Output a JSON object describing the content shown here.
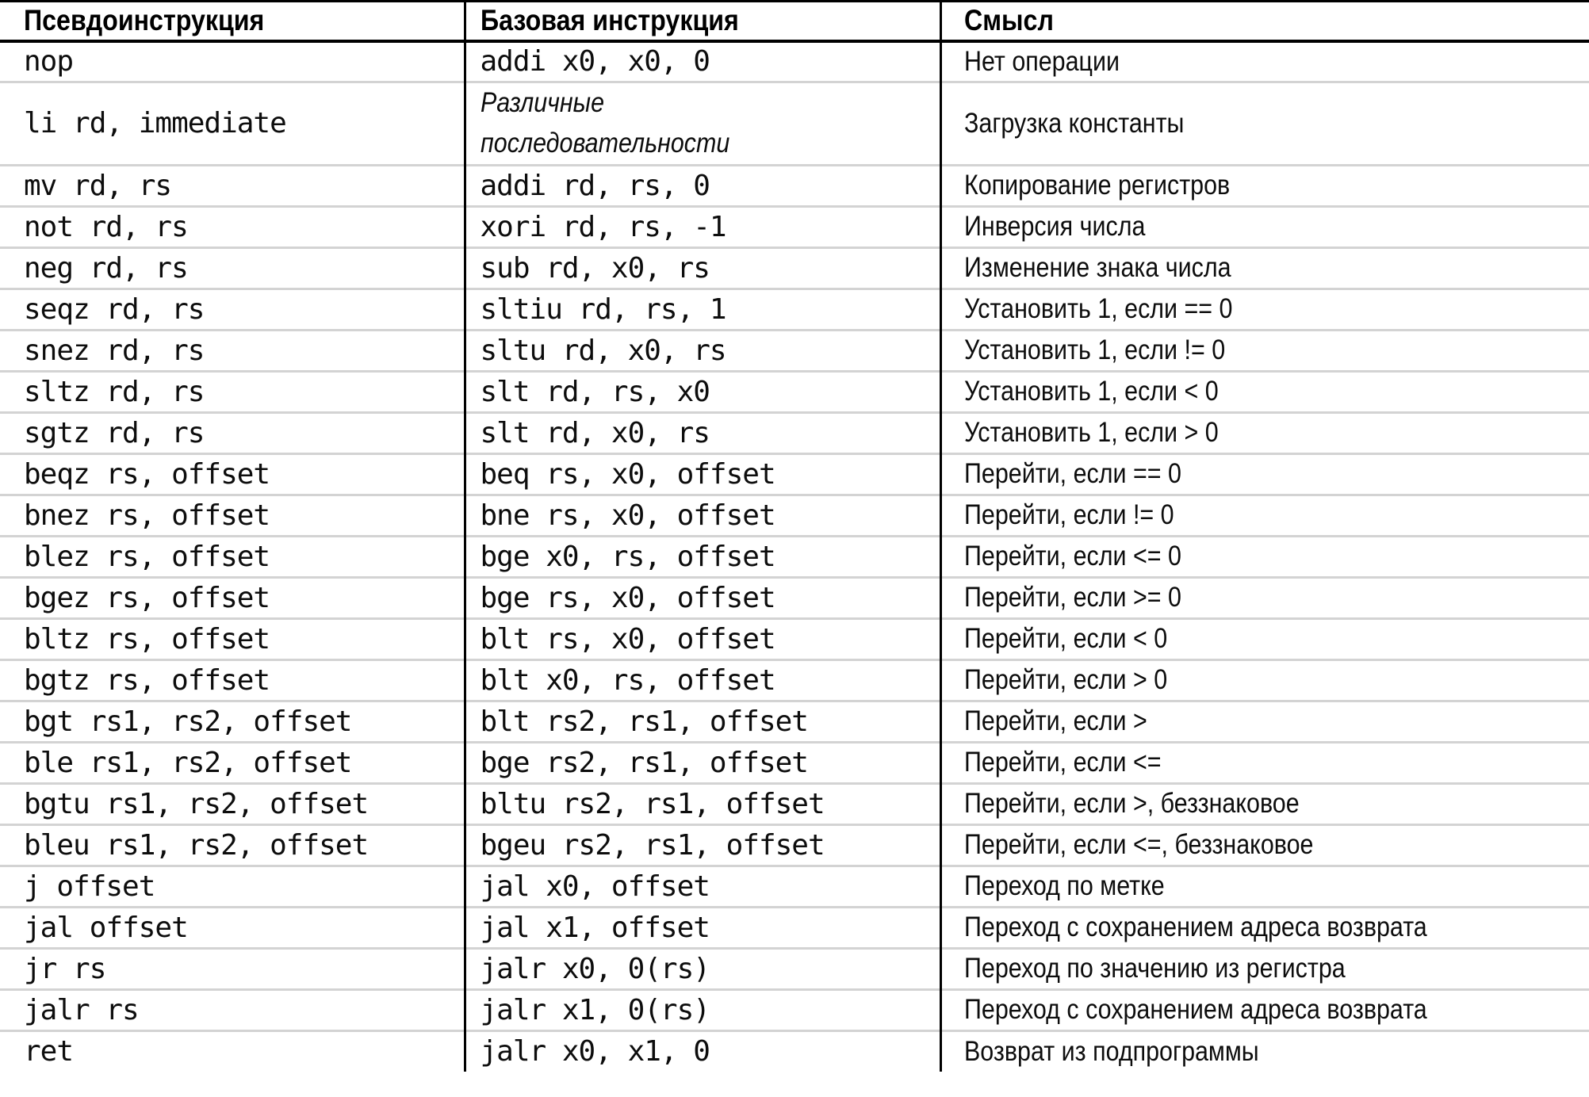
{
  "table": {
    "columns": [
      {
        "label": "Псевдоинструкция"
      },
      {
        "label": "Базовая инструкция"
      },
      {
        "label": "Смысл"
      }
    ],
    "rows": [
      {
        "pseudo": "nop",
        "base": "addi x0, x0, 0",
        "base_italic": false,
        "meaning": "Нет операции"
      },
      {
        "pseudo": "li rd, immediate",
        "base": "Различные\nпоследовательности",
        "base_italic": true,
        "meaning": "Загрузка константы"
      },
      {
        "pseudo": "mv rd, rs",
        "base": "addi rd, rs, 0",
        "base_italic": false,
        "meaning": "Копирование регистров"
      },
      {
        "pseudo": "not rd, rs",
        "base": "xori rd, rs, -1",
        "base_italic": false,
        "meaning": "Инверсия числа"
      },
      {
        "pseudo": "neg rd, rs",
        "base": "sub rd, x0, rs",
        "base_italic": false,
        "meaning": "Изменение знака числа"
      },
      {
        "pseudo": "seqz rd, rs",
        "base": "sltiu rd, rs, 1",
        "base_italic": false,
        "meaning": "Установить 1, если == 0"
      },
      {
        "pseudo": "snez rd, rs",
        "base": "sltu rd, x0, rs",
        "base_italic": false,
        "meaning": "Установить 1, если != 0"
      },
      {
        "pseudo": "sltz rd, rs",
        "base": "slt rd, rs, x0",
        "base_italic": false,
        "meaning": "Установить 1, если < 0"
      },
      {
        "pseudo": "sgtz rd, rs",
        "base": "slt rd, x0, rs",
        "base_italic": false,
        "meaning": "Установить 1, если > 0"
      },
      {
        "pseudo": "beqz rs, offset",
        "base": "beq rs, x0, offset",
        "base_italic": false,
        "meaning": "Перейти, если == 0"
      },
      {
        "pseudo": "bnez rs, offset",
        "base": "bne rs, x0, offset",
        "base_italic": false,
        "meaning": "Перейти, если != 0"
      },
      {
        "pseudo": "blez rs, offset",
        "base": "bge x0, rs, offset",
        "base_italic": false,
        "meaning": "Перейти, если <= 0"
      },
      {
        "pseudo": "bgez rs, offset",
        "base": "bge rs, x0, offset",
        "base_italic": false,
        "meaning": "Перейти, если >= 0"
      },
      {
        "pseudo": "bltz rs, offset",
        "base": "blt rs, x0, offset",
        "base_italic": false,
        "meaning": "Перейти, если < 0"
      },
      {
        "pseudo": "bgtz rs, offset",
        "base": "blt x0, rs, offset",
        "base_italic": false,
        "meaning": "Перейти, если > 0"
      },
      {
        "pseudo": "bgt rs1, rs2, offset",
        "base": "blt rs2, rs1, offset",
        "base_italic": false,
        "meaning": "Перейти, если >"
      },
      {
        "pseudo": "ble rs1, rs2, offset",
        "base": "bge rs2, rs1, offset",
        "base_italic": false,
        "meaning": "Перейти, если <="
      },
      {
        "pseudo": "bgtu rs1, rs2, offset",
        "base": "bltu rs2, rs1, offset",
        "base_italic": false,
        "meaning": "Перейти, если >, беззнаковое"
      },
      {
        "pseudo": "bleu rs1, rs2, offset",
        "base": "bgeu rs2, rs1, offset",
        "base_italic": false,
        "meaning": "Перейти, если <=, беззнаковое"
      },
      {
        "pseudo": "j offset",
        "base": "jal x0, offset",
        "base_italic": false,
        "meaning": "Переход по метке"
      },
      {
        "pseudo": "jal offset",
        "base": "jal x1, offset",
        "base_italic": false,
        "meaning": "Переход с сохранением адреса возврата"
      },
      {
        "pseudo": "jr rs",
        "base": "jalr x0, 0(rs)",
        "base_italic": false,
        "meaning": "Переход по значению из регистра"
      },
      {
        "pseudo": "jalr rs",
        "base": "jalr x1, 0(rs)",
        "base_italic": false,
        "meaning": "Переход с сохранением адреса возврата"
      },
      {
        "pseudo": "ret",
        "base": "jalr x0, x1, 0",
        "base_italic": false,
        "meaning": "Возврат из подпрограммы"
      }
    ]
  }
}
